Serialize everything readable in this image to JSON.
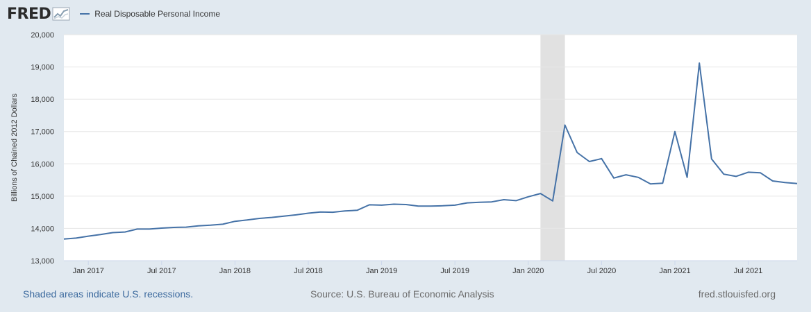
{
  "header": {
    "logo_text": "FRED",
    "legend_label": "Real Disposable Personal Income"
  },
  "colors": {
    "series": "#4572a7",
    "recession": "#e1e1e1",
    "grid": "#e6e6e6",
    "background": "#e1e9f0"
  },
  "chart_data": {
    "type": "line",
    "title": "",
    "ylabel": "Billions of Chained 2012 Dollars",
    "xlabel": "",
    "ylim": [
      13000,
      20000
    ],
    "y_ticks": [
      13000,
      14000,
      15000,
      16000,
      17000,
      18000,
      19000,
      20000
    ],
    "y_tick_labels": [
      "13,000",
      "14,000",
      "15,000",
      "16,000",
      "17,000",
      "18,000",
      "19,000",
      "20,000"
    ],
    "x_ticks": [
      {
        "label": "Jan 2017",
        "month": 0
      },
      {
        "label": "Jul 2017",
        "month": 6
      },
      {
        "label": "Jan 2018",
        "month": 12
      },
      {
        "label": "Jul 2018",
        "month": 18
      },
      {
        "label": "Jan 2019",
        "month": 24
      },
      {
        "label": "Jul 2019",
        "month": 30
      },
      {
        "label": "Jan 2020",
        "month": 36
      },
      {
        "label": "Jul 2020",
        "month": 42
      },
      {
        "label": "Jan 2021",
        "month": 48
      },
      {
        "label": "Jul 2021",
        "month": 54
      }
    ],
    "x_start_label": "Nov 2016",
    "recession": {
      "start_month": 37,
      "end_month": 39,
      "label": "Feb 2020 – Apr 2020"
    },
    "series": [
      {
        "name": "Real Disposable Personal Income",
        "start_month": -2,
        "values": [
          13670,
          13700,
          13760,
          13810,
          13870,
          13890,
          13980,
          13980,
          14010,
          14030,
          14040,
          14080,
          14100,
          14130,
          14220,
          14260,
          14310,
          14340,
          14380,
          14420,
          14470,
          14510,
          14500,
          14540,
          14560,
          14730,
          14720,
          14750,
          14740,
          14690,
          14690,
          14700,
          14720,
          14790,
          14810,
          14820,
          14890,
          14860,
          14980,
          15080,
          14850,
          17200,
          16350,
          16070,
          16160,
          15560,
          15660,
          15580,
          15380,
          15400,
          17000,
          15580,
          19120,
          16150,
          15680,
          15610,
          15740,
          15720,
          15470,
          15420,
          15390
        ]
      }
    ]
  },
  "footer": {
    "recession_note": "Shaded areas indicate U.S. recessions.",
    "source": "Source: U.S. Bureau of Economic Analysis",
    "site": "fred.stlouisfed.org"
  }
}
